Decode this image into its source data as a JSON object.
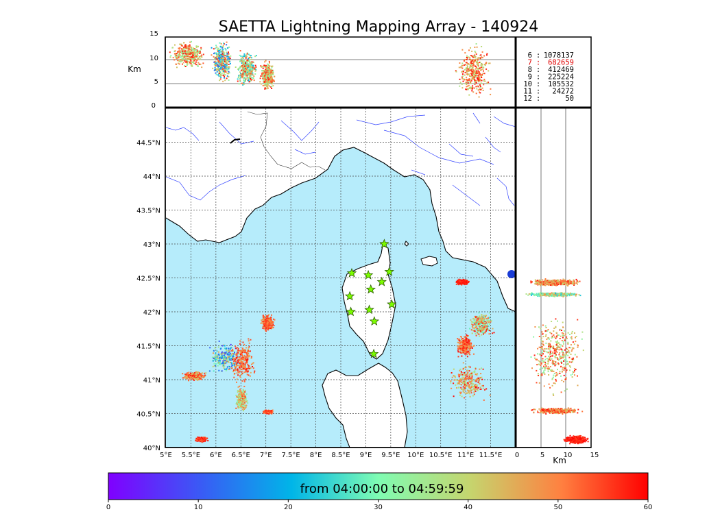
{
  "title": "SAETTA Lightning Mapping Array - 140924",
  "top_panel": {
    "ylabel": "Km",
    "yticks": [
      "15",
      "10",
      "5",
      "0"
    ],
    "legend": [
      {
        "key": "6",
        "value": "1078137",
        "color": "#000000"
      },
      {
        "key": "7",
        "value": "682659",
        "color": "#e00000"
      },
      {
        "key": "8",
        "value": "412469",
        "color": "#000000"
      },
      {
        "key": "9",
        "value": "225224",
        "color": "#000000"
      },
      {
        "key": "10",
        "value": "105532",
        "color": "#000000"
      },
      {
        "key": "11",
        "value": "24272",
        "color": "#000000"
      },
      {
        "key": "12",
        "value": "50",
        "color": "#000000"
      }
    ]
  },
  "map_panel": {
    "lon_labels": [
      "5°E",
      "5.5°E",
      "6°E",
      "6.5°E",
      "7°E",
      "7.5°E",
      "8°E",
      "8.5°E",
      "9°E",
      "9.5°E",
      "10°E",
      "10.5°E",
      "11°E",
      "11.5°E"
    ],
    "lat_labels": [
      "44.5°N",
      "44°N",
      "43.5°N",
      "43°N",
      "42.5°N",
      "42°N",
      "41.5°N",
      "41°N",
      "40.5°N",
      "40°N"
    ],
    "sea_color": "#b6ecfb",
    "station_color": "#7cfc00"
  },
  "side_panel": {
    "xlabel": "Km",
    "xticks": [
      "0",
      "5",
      "10",
      "15"
    ]
  },
  "colorbar": {
    "label": "from 04:00:00 to 04:59:59",
    "ticks": [
      "0",
      "10",
      "20",
      "30",
      "40",
      "50",
      "60"
    ],
    "colormap": "rainbow"
  },
  "chart_data": [
    {
      "type": "scatter",
      "panel": "altitude vs longitude",
      "xlabel": "",
      "ylabel": "Km",
      "xlim": [
        5,
        12
      ],
      "ylim": [
        0,
        15
      ],
      "clusters": [
        {
          "lon_range": [
            5.0,
            5.85
          ],
          "alt_range": [
            8,
            15
          ],
          "time_min_range": [
            30,
            60
          ]
        },
        {
          "lon_range": [
            5.85,
            6.35
          ],
          "alt_range": [
            5,
            15
          ],
          "time_min_range": [
            10,
            60
          ]
        },
        {
          "lon_range": [
            6.35,
            6.85
          ],
          "alt_range": [
            4,
            13
          ],
          "time_min_range": [
            20,
            60
          ]
        },
        {
          "lon_range": [
            6.85,
            7.2
          ],
          "alt_range": [
            3,
            11
          ],
          "time_min_range": [
            30,
            60
          ]
        },
        {
          "lon_range": [
            10.75,
            11.55
          ],
          "alt_range": [
            1,
            15
          ],
          "time_min_range": [
            35,
            60
          ]
        }
      ]
    },
    {
      "type": "scatter",
      "panel": "plan view",
      "xlim": [
        5,
        12
      ],
      "ylim": [
        40,
        45
      ],
      "clusters": [
        {
          "lon_range": [
            5.25,
            5.85
          ],
          "lat_range": [
            40.98,
            41.15
          ],
          "time_min_range": [
            40,
            60
          ]
        },
        {
          "lon_range": [
            5.75,
            6.6
          ],
          "lat_range": [
            41.05,
            41.6
          ],
          "time_min_range": [
            5,
            50
          ]
        },
        {
          "lon_range": [
            6.2,
            6.85
          ],
          "lat_range": [
            40.9,
            41.65
          ],
          "time_min_range": [
            45,
            60
          ]
        },
        {
          "lon_range": [
            6.85,
            7.2
          ],
          "lat_range": [
            41.7,
            42.0
          ],
          "time_min_range": [
            45,
            60
          ]
        },
        {
          "lon_range": [
            6.35,
            6.65
          ],
          "lat_range": [
            40.5,
            40.95
          ],
          "time_min_range": [
            30,
            55
          ]
        },
        {
          "lon_range": [
            6.9,
            7.15
          ],
          "lat_range": [
            40.5,
            40.57
          ],
          "time_min_range": [
            50,
            60
          ]
        },
        {
          "lon_range": [
            5.55,
            5.85
          ],
          "lat_range": [
            40.08,
            40.18
          ],
          "time_min_range": [
            50,
            60
          ]
        },
        {
          "lon_range": [
            10.75,
            11.1
          ],
          "lat_range": [
            42.4,
            42.5
          ],
          "time_min_range": [
            55,
            60
          ]
        },
        {
          "lon_range": [
            10.75,
            11.2
          ],
          "lat_range": [
            41.3,
            41.7
          ],
          "time_min_range": [
            45,
            60
          ]
        },
        {
          "lon_range": [
            11.0,
            11.6
          ],
          "lat_range": [
            41.6,
            42.05
          ],
          "time_min_range": [
            25,
            60
          ]
        },
        {
          "lon_range": [
            10.55,
            11.55
          ],
          "lat_range": [
            40.65,
            41.3
          ],
          "time_min_range": [
            35,
            60
          ]
        }
      ],
      "stations": [
        [
          9.37,
          43.0
        ],
        [
          8.72,
          42.57
        ],
        [
          9.05,
          42.54
        ],
        [
          9.47,
          42.59
        ],
        [
          9.32,
          42.44
        ],
        [
          9.1,
          42.33
        ],
        [
          8.68,
          42.23
        ],
        [
          9.52,
          42.11
        ],
        [
          8.7,
          42.0
        ],
        [
          9.07,
          42.03
        ],
        [
          9.17,
          41.86
        ],
        [
          9.16,
          41.38
        ]
      ]
    },
    {
      "type": "scatter",
      "panel": "latitude vs altitude",
      "xlabel": "Km",
      "xlim": [
        0,
        15
      ],
      "ylim": [
        40,
        45
      ],
      "clusters": [
        {
          "alt_range": [
            1,
            14
          ],
          "lat_range": [
            42.38,
            42.5
          ],
          "time_min_range": [
            40,
            60
          ]
        },
        {
          "alt_range": [
            1,
            14
          ],
          "lat_range": [
            42.23,
            42.3
          ],
          "time_min_range": [
            20,
            50
          ]
        },
        {
          "alt_range": [
            1,
            15
          ],
          "lat_range": [
            40.7,
            42.05
          ],
          "time_min_range": [
            30,
            60
          ]
        },
        {
          "alt_range": [
            2,
            14
          ],
          "lat_range": [
            40.5,
            40.6
          ],
          "time_min_range": [
            40,
            60
          ]
        },
        {
          "alt_range": [
            9,
            15
          ],
          "lat_range": [
            40.05,
            40.2
          ],
          "time_min_range": [
            55,
            60
          ]
        }
      ]
    }
  ]
}
